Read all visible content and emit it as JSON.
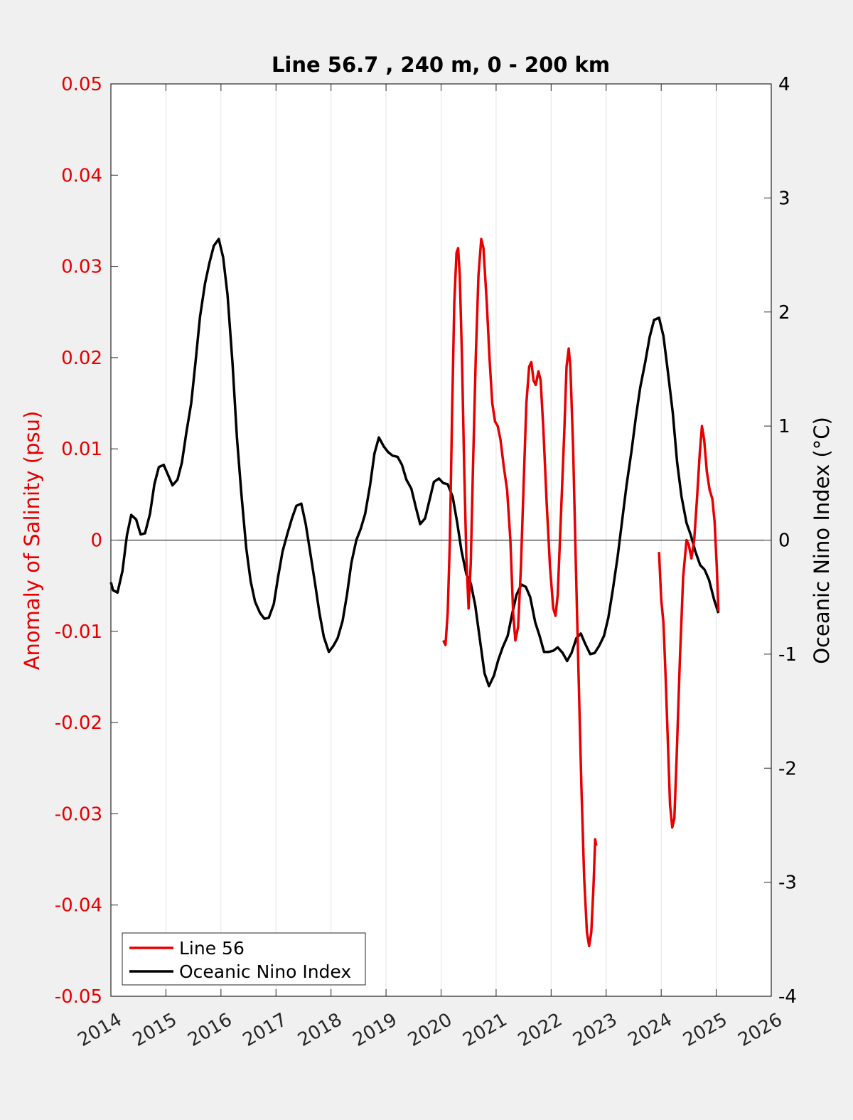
{
  "chart_data": {
    "type": "line",
    "title": "Line 56.7 , 240 m, 0 - 200 km",
    "xlabel": "",
    "ylabel_left": "Anomaly of Salinity (psu)",
    "ylabel_right": "Oceanic Nino Index (°C)",
    "xlim": [
      2014,
      2026
    ],
    "ylim_left": [
      -0.05,
      0.05
    ],
    "ylim_right": [
      -4,
      4
    ],
    "x_ticks": [
      2014,
      2015,
      2016,
      2017,
      2018,
      2019,
      2020,
      2021,
      2022,
      2023,
      2024,
      2025,
      2026
    ],
    "y_ticks_left": [
      "-0.05",
      "-0.04",
      "-0.03",
      "-0.02",
      "-0.01",
      "0",
      "0.01",
      "0.02",
      "0.03",
      "0.04",
      "0.05"
    ],
    "y_ticks_right": [
      "-4",
      "-3",
      "-2",
      "-1",
      "0",
      "1",
      "2",
      "3",
      "4"
    ],
    "grid": "vertical",
    "legend_position": "bottom-left",
    "colors": {
      "line56": "#e60000",
      "oni": "#000000",
      "left_axis": "#e60000",
      "right_axis": "#000000"
    },
    "series": [
      {
        "name": "Line 56",
        "axis": "left",
        "segments": [
          [
            [
              2020.04,
              -0.011
            ],
            [
              2020.08,
              -0.0115
            ],
            [
              2020.12,
              -0.008
            ],
            [
              2020.16,
              0.0
            ],
            [
              2020.2,
              0.014
            ],
            [
              2020.24,
              0.026
            ],
            [
              2020.28,
              0.0315
            ],
            [
              2020.31,
              0.032
            ],
            [
              2020.34,
              0.029
            ],
            [
              2020.38,
              0.02
            ],
            [
              2020.42,
              0.008
            ],
            [
              2020.46,
              -0.002
            ],
            [
              2020.5,
              -0.0075
            ],
            [
              2020.54,
              -0.0025
            ],
            [
              2020.58,
              0.008
            ],
            [
              2020.63,
              0.02
            ],
            [
              2020.68,
              0.029
            ],
            [
              2020.73,
              0.033
            ],
            [
              2020.77,
              0.032
            ],
            [
              2020.83,
              0.026
            ],
            [
              2020.88,
              0.02
            ],
            [
              2020.93,
              0.015
            ],
            [
              2020.98,
              0.013
            ],
            [
              2021.03,
              0.0125
            ],
            [
              2021.08,
              0.011
            ],
            [
              2021.14,
              0.008
            ],
            [
              2021.2,
              0.0055
            ],
            [
              2021.26,
              0.0
            ],
            [
              2021.31,
              -0.008
            ],
            [
              2021.35,
              -0.011
            ],
            [
              2021.4,
              -0.0095
            ],
            [
              2021.45,
              -0.003
            ],
            [
              2021.5,
              0.006
            ],
            [
              2021.55,
              0.015
            ],
            [
              2021.6,
              0.019
            ],
            [
              2021.64,
              0.0195
            ],
            [
              2021.68,
              0.0175
            ],
            [
              2021.72,
              0.017
            ],
            [
              2021.77,
              0.0185
            ],
            [
              2021.81,
              0.0175
            ],
            [
              2021.86,
              0.012
            ],
            [
              2021.92,
              0.004
            ],
            [
              2021.98,
              -0.003
            ],
            [
              2022.04,
              -0.0075
            ],
            [
              2022.08,
              -0.0083
            ],
            [
              2022.12,
              -0.006
            ],
            [
              2022.18,
              0.003
            ],
            [
              2022.24,
              0.012
            ],
            [
              2022.28,
              0.019
            ],
            [
              2022.32,
              0.021
            ],
            [
              2022.35,
              0.019
            ],
            [
              2022.4,
              0.01
            ],
            [
              2022.45,
              -0.003
            ],
            [
              2022.5,
              -0.015
            ],
            [
              2022.55,
              -0.027
            ],
            [
              2022.6,
              -0.037
            ],
            [
              2022.65,
              -0.043
            ],
            [
              2022.69,
              -0.0445
            ],
            [
              2022.73,
              -0.043
            ],
            [
              2022.77,
              -0.038
            ],
            [
              2022.8,
              -0.0328
            ],
            [
              2022.82,
              -0.0335
            ]
          ],
          [
            [
              2023.96,
              -0.0013
            ],
            [
              2024.0,
              -0.0065
            ],
            [
              2024.04,
              -0.009
            ],
            [
              2024.08,
              -0.015
            ],
            [
              2024.12,
              -0.022
            ],
            [
              2024.16,
              -0.029
            ],
            [
              2024.2,
              -0.0315
            ],
            [
              2024.24,
              -0.0305
            ],
            [
              2024.28,
              -0.024
            ],
            [
              2024.34,
              -0.013
            ],
            [
              2024.4,
              -0.004
            ],
            [
              2024.46,
              0.0
            ],
            [
              2024.5,
              -0.0005
            ],
            [
              2024.55,
              -0.002
            ],
            [
              2024.6,
              0.0
            ],
            [
              2024.65,
              0.0045
            ],
            [
              2024.7,
              0.0095
            ],
            [
              2024.74,
              0.0125
            ],
            [
              2024.78,
              0.011
            ],
            [
              2024.83,
              0.0075
            ],
            [
              2024.88,
              0.0055
            ],
            [
              2024.93,
              0.0045
            ],
            [
              2024.97,
              0.002
            ],
            [
              2025.01,
              -0.003
            ],
            [
              2025.04,
              -0.0078
            ]
          ]
        ]
      },
      {
        "name": "Oceanic Nino Index",
        "axis": "right",
        "points": [
          [
            2014.0,
            -0.37
          ],
          [
            2014.04,
            -0.44
          ],
          [
            2014.12,
            -0.46
          ],
          [
            2014.21,
            -0.27
          ],
          [
            2014.29,
            0.04
          ],
          [
            2014.37,
            0.22
          ],
          [
            2014.46,
            0.18
          ],
          [
            2014.54,
            0.05
          ],
          [
            2014.62,
            0.06
          ],
          [
            2014.71,
            0.23
          ],
          [
            2014.79,
            0.49
          ],
          [
            2014.87,
            0.64
          ],
          [
            2014.96,
            0.66
          ],
          [
            2015.04,
            0.57
          ],
          [
            2015.12,
            0.48
          ],
          [
            2015.21,
            0.53
          ],
          [
            2015.29,
            0.68
          ],
          [
            2015.37,
            0.94
          ],
          [
            2015.46,
            1.2
          ],
          [
            2015.54,
            1.57
          ],
          [
            2015.62,
            1.96
          ],
          [
            2015.71,
            2.25
          ],
          [
            2015.79,
            2.43
          ],
          [
            2015.87,
            2.58
          ],
          [
            2015.96,
            2.64
          ],
          [
            2016.04,
            2.48
          ],
          [
            2016.12,
            2.15
          ],
          [
            2016.21,
            1.55
          ],
          [
            2016.29,
            0.9
          ],
          [
            2016.37,
            0.41
          ],
          [
            2016.46,
            -0.07
          ],
          [
            2016.54,
            -0.36
          ],
          [
            2016.62,
            -0.54
          ],
          [
            2016.71,
            -0.64
          ],
          [
            2016.79,
            -0.69
          ],
          [
            2016.87,
            -0.68
          ],
          [
            2016.96,
            -0.56
          ],
          [
            2017.04,
            -0.32
          ],
          [
            2017.12,
            -0.1
          ],
          [
            2017.21,
            0.06
          ],
          [
            2017.29,
            0.19
          ],
          [
            2017.37,
            0.3
          ],
          [
            2017.46,
            0.32
          ],
          [
            2017.54,
            0.14
          ],
          [
            2017.62,
            -0.1
          ],
          [
            2017.71,
            -0.38
          ],
          [
            2017.79,
            -0.64
          ],
          [
            2017.87,
            -0.85
          ],
          [
            2017.96,
            -0.98
          ],
          [
            2018.04,
            -0.93
          ],
          [
            2018.12,
            -0.86
          ],
          [
            2018.21,
            -0.71
          ],
          [
            2018.29,
            -0.48
          ],
          [
            2018.37,
            -0.2
          ],
          [
            2018.46,
            0.0
          ],
          [
            2018.54,
            0.1
          ],
          [
            2018.62,
            0.23
          ],
          [
            2018.71,
            0.48
          ],
          [
            2018.79,
            0.76
          ],
          [
            2018.87,
            0.9
          ],
          [
            2018.96,
            0.82
          ],
          [
            2019.04,
            0.77
          ],
          [
            2019.12,
            0.74
          ],
          [
            2019.21,
            0.73
          ],
          [
            2019.29,
            0.66
          ],
          [
            2019.37,
            0.53
          ],
          [
            2019.46,
            0.45
          ],
          [
            2019.54,
            0.29
          ],
          [
            2019.62,
            0.14
          ],
          [
            2019.71,
            0.19
          ],
          [
            2019.79,
            0.35
          ],
          [
            2019.87,
            0.51
          ],
          [
            2019.96,
            0.54
          ],
          [
            2020.04,
            0.5
          ],
          [
            2020.12,
            0.49
          ],
          [
            2020.21,
            0.38
          ],
          [
            2020.29,
            0.16
          ],
          [
            2020.37,
            -0.09
          ],
          [
            2020.46,
            -0.3
          ],
          [
            2020.54,
            -0.38
          ],
          [
            2020.62,
            -0.57
          ],
          [
            2020.71,
            -0.89
          ],
          [
            2020.79,
            -1.17
          ],
          [
            2020.87,
            -1.28
          ],
          [
            2020.96,
            -1.19
          ],
          [
            2021.04,
            -1.05
          ],
          [
            2021.12,
            -0.94
          ],
          [
            2021.21,
            -0.84
          ],
          [
            2021.29,
            -0.65
          ],
          [
            2021.37,
            -0.48
          ],
          [
            2021.46,
            -0.39
          ],
          [
            2021.54,
            -0.41
          ],
          [
            2021.62,
            -0.5
          ],
          [
            2021.71,
            -0.72
          ],
          [
            2021.79,
            -0.84
          ],
          [
            2021.87,
            -0.98
          ],
          [
            2021.96,
            -0.98
          ],
          [
            2022.04,
            -0.97
          ],
          [
            2022.12,
            -0.94
          ],
          [
            2022.21,
            -0.99
          ],
          [
            2022.29,
            -1.06
          ],
          [
            2022.37,
            -0.99
          ],
          [
            2022.46,
            -0.86
          ],
          [
            2022.54,
            -0.82
          ],
          [
            2022.62,
            -0.91
          ],
          [
            2022.71,
            -1.0
          ],
          [
            2022.79,
            -0.99
          ],
          [
            2022.87,
            -0.93
          ],
          [
            2022.96,
            -0.84
          ],
          [
            2023.04,
            -0.68
          ],
          [
            2023.12,
            -0.44
          ],
          [
            2023.21,
            -0.14
          ],
          [
            2023.29,
            0.17
          ],
          [
            2023.37,
            0.48
          ],
          [
            2023.46,
            0.78
          ],
          [
            2023.54,
            1.08
          ],
          [
            2023.62,
            1.34
          ],
          [
            2023.71,
            1.56
          ],
          [
            2023.79,
            1.78
          ],
          [
            2023.87,
            1.93
          ],
          [
            2023.96,
            1.95
          ],
          [
            2024.04,
            1.79
          ],
          [
            2024.12,
            1.48
          ],
          [
            2024.21,
            1.12
          ],
          [
            2024.29,
            0.68
          ],
          [
            2024.37,
            0.38
          ],
          [
            2024.46,
            0.15
          ],
          [
            2024.54,
            0.04
          ],
          [
            2024.62,
            -0.1
          ],
          [
            2024.71,
            -0.22
          ],
          [
            2024.79,
            -0.26
          ],
          [
            2024.87,
            -0.35
          ],
          [
            2024.96,
            -0.52
          ],
          [
            2025.04,
            -0.64
          ]
        ]
      }
    ]
  }
}
